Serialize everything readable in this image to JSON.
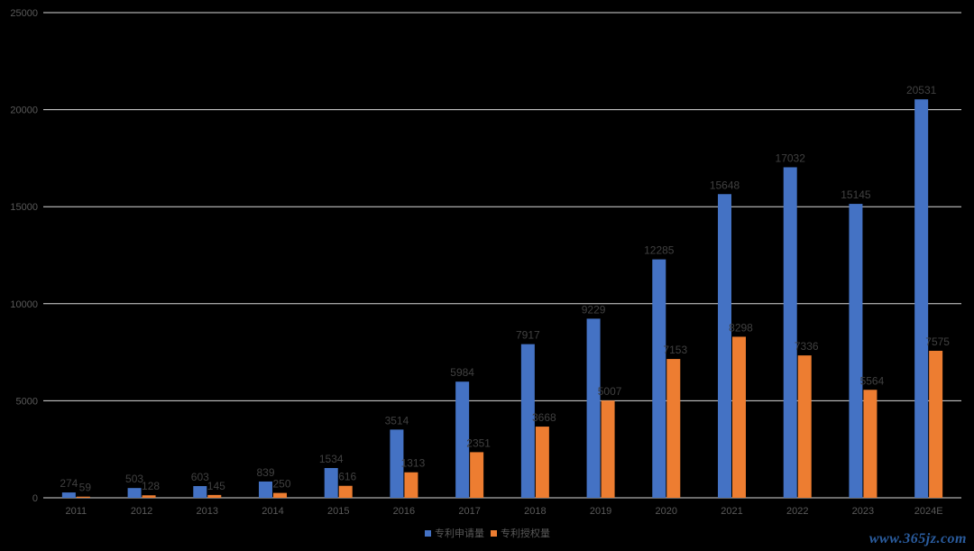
{
  "chart_data": {
    "type": "bar",
    "categories": [
      "2011",
      "2012",
      "2013",
      "2014",
      "2015",
      "2016",
      "2017",
      "2018",
      "2019",
      "2020",
      "2021",
      "2022",
      "2023",
      "2024E"
    ],
    "series": [
      {
        "name": "专利申请量",
        "color": "#4472c4",
        "values": [
          274,
          503,
          603,
          839,
          1534,
          3514,
          5984,
          7917,
          9229,
          12285,
          15648,
          17032,
          15145,
          20531
        ]
      },
      {
        "name": "专利授权量",
        "color": "#ed7d31",
        "values": [
          59,
          128,
          145,
          250,
          616,
          1313,
          2351,
          3668,
          5007,
          7153,
          8298,
          7336,
          5564,
          7575
        ]
      }
    ],
    "ylim": [
      0,
      25000
    ],
    "yticks": [
      0,
      5000,
      10000,
      15000,
      20000,
      25000
    ],
    "title": "",
    "xlabel": "",
    "ylabel": "",
    "grid": true,
    "legend_position": "bottom-center",
    "data_labels": true
  },
  "watermark": "www.365jz.com",
  "colors": {
    "background": "#000000",
    "gridline": "#d9d9d9",
    "axis_text": "#595959",
    "data_label_text": "#404040"
  }
}
